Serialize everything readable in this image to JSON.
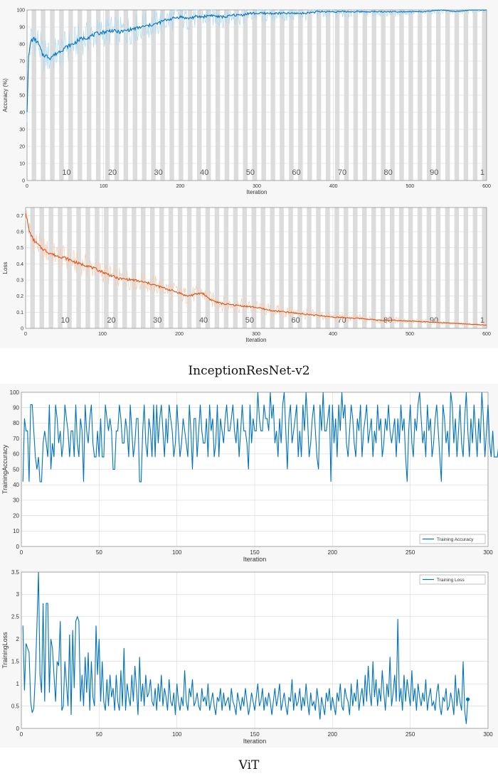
{
  "captions": {
    "top": "InceptionResNet-v2",
    "bottom": "ViT"
  },
  "chart_data": [
    {
      "id": "inc-acc",
      "type": "line",
      "xlabel": "Iteration",
      "ylabel": "Accuracy (%)",
      "xlim": [
        0,
        600
      ],
      "ylim": [
        0,
        100
      ],
      "xticks": [
        0,
        100,
        200,
        300,
        400,
        500,
        600
      ],
      "yticks": [
        0,
        10,
        20,
        30,
        40,
        50,
        60,
        70,
        80,
        90,
        100
      ],
      "epoch_labels": [
        "10",
        "20",
        "30",
        "40",
        "50",
        "60",
        "70",
        "80",
        "90",
        "1"
      ],
      "epoch_label_x": [
        60,
        120,
        180,
        240,
        300,
        360,
        420,
        480,
        540,
        600
      ],
      "epoch_band_width": 6,
      "grid": true,
      "series": [
        {
          "color": "#0072bd",
          "raw_color": "#a9d8f2",
          "x": [
            0,
            2,
            5,
            10,
            15,
            20,
            30,
            40,
            50,
            60,
            70,
            80,
            90,
            100,
            110,
            120,
            130,
            140,
            150,
            160,
            170,
            180,
            190,
            200,
            210,
            220,
            230,
            240,
            250,
            260,
            270,
            280,
            290,
            300,
            320,
            340,
            360,
            380,
            400,
            420,
            440,
            460,
            480,
            500,
            520,
            540,
            560,
            580,
            600
          ],
          "y": [
            41,
            72,
            82,
            83,
            80,
            74,
            72,
            75,
            78,
            80,
            83,
            84,
            86,
            87,
            88,
            87,
            88,
            89,
            90,
            91,
            92,
            94,
            95,
            96,
            95,
            96,
            96,
            97,
            96,
            96,
            97,
            97,
            98,
            98,
            98,
            98,
            98,
            99,
            99,
            99,
            99,
            99,
            99,
            99,
            99,
            100,
            99,
            100,
            100
          ]
        }
      ]
    },
    {
      "id": "inc-loss",
      "type": "line",
      "xlabel": "Iteration",
      "ylabel": "Loss",
      "xlim": [
        0,
        600
      ],
      "ylim": [
        0,
        0.75
      ],
      "xticks": [
        0,
        100,
        200,
        300,
        400,
        500,
        600
      ],
      "yticks": [
        0,
        0.1,
        0.2,
        0.3,
        0.4,
        0.5,
        0.6,
        0.7
      ],
      "epoch_labels": [
        "10",
        "20",
        "30",
        "40",
        "50",
        "60",
        "70",
        "80",
        "90",
        "1"
      ],
      "epoch_label_x": [
        60,
        120,
        180,
        240,
        300,
        360,
        420,
        480,
        540,
        600
      ],
      "epoch_band_width": 6,
      "grid": true,
      "series": [
        {
          "color": "#d95319",
          "raw_color": "#f6cbb0",
          "x": [
            0,
            5,
            10,
            20,
            30,
            40,
            50,
            60,
            70,
            80,
            90,
            100,
            110,
            120,
            140,
            160,
            180,
            200,
            210,
            220,
            230,
            240,
            250,
            260,
            280,
            300,
            320,
            340,
            360,
            380,
            400,
            420,
            440,
            460,
            480,
            500,
            520,
            540,
            560,
            580,
            600
          ],
          "y": [
            0.72,
            0.6,
            0.55,
            0.5,
            0.47,
            0.45,
            0.44,
            0.42,
            0.4,
            0.39,
            0.37,
            0.35,
            0.33,
            0.31,
            0.3,
            0.28,
            0.25,
            0.22,
            0.2,
            0.21,
            0.22,
            0.18,
            0.16,
            0.15,
            0.14,
            0.13,
            0.11,
            0.1,
            0.09,
            0.08,
            0.07,
            0.065,
            0.06,
            0.05,
            0.05,
            0.045,
            0.04,
            0.035,
            0.03,
            0.025,
            0.02
          ]
        }
      ]
    },
    {
      "id": "vit-acc",
      "type": "line",
      "xlabel": "Iteration",
      "ylabel": "TrainingAccuracy",
      "xlim": [
        0,
        300
      ],
      "ylim": [
        0,
        100
      ],
      "xticks": [
        0,
        50,
        100,
        150,
        200,
        250,
        300
      ],
      "yticks": [
        0,
        10,
        20,
        30,
        40,
        50,
        60,
        70,
        80,
        90,
        100
      ],
      "grid": true,
      "legend_position": "bottom-right",
      "series": [
        {
          "name": "Training Accuracy",
          "color": "#0072bd",
          "x_start": 1,
          "values": [
            42,
            83,
            75,
            75,
            42,
            92,
            92,
            75,
            58,
            50,
            58,
            42,
            42,
            67,
            75,
            67,
            58,
            92,
            50,
            67,
            58,
            92,
            83,
            67,
            75,
            58,
            67,
            92,
            83,
            75,
            58,
            75,
            75,
            58,
            92,
            67,
            58,
            83,
            75,
            42,
            92,
            75,
            67,
            83,
            92,
            67,
            58,
            58,
            75,
            58,
            83,
            58,
            58,
            92,
            83,
            75,
            83,
            75,
            50,
            50,
            75,
            75,
            92,
            83,
            67,
            67,
            83,
            75,
            58,
            92,
            75,
            58,
            67,
            83,
            83,
            42,
            42,
            75,
            92,
            67,
            58,
            83,
            75,
            58,
            92,
            58,
            92,
            67,
            83,
            92,
            75,
            58,
            83,
            67,
            92,
            83,
            75,
            58,
            67,
            92,
            75,
            58,
            67,
            83,
            75,
            67,
            58,
            92,
            75,
            50,
            83,
            83,
            58,
            75,
            92,
            75,
            67,
            67,
            83,
            58,
            92,
            75,
            83,
            58,
            67,
            92,
            58,
            83,
            75,
            67,
            83,
            92,
            75,
            75,
            83,
            92,
            75,
            67,
            83,
            58,
            75,
            92,
            75,
            75,
            67,
            50,
            92,
            67,
            83,
            75,
            75,
            100,
            83,
            75,
            75,
            92,
            83,
            83,
            75,
            100,
            83,
            92,
            67,
            75,
            58,
            83,
            67,
            92,
            100,
            75,
            50,
            83,
            92,
            67,
            75,
            83,
            92,
            58,
            75,
            58,
            92,
            75,
            100,
            83,
            58,
            67,
            83,
            92,
            75,
            58,
            50,
            92,
            75,
            100,
            75,
            75,
            83,
            92,
            42,
            92,
            67,
            83,
            58,
            92,
            75,
            100,
            83,
            92,
            67,
            58,
            75,
            92,
            83,
            67,
            58,
            83,
            75,
            92,
            58,
            75,
            83,
            92,
            67,
            75,
            83,
            58,
            75,
            67,
            92,
            75,
            83,
            58,
            67,
            83,
            75,
            92,
            75,
            67,
            75,
            83,
            58,
            83,
            67,
            92,
            75,
            83,
            58,
            42,
            75,
            92,
            67,
            58,
            83,
            75,
            92,
            100,
            83,
            67,
            75,
            58,
            92,
            75,
            83,
            58,
            67,
            83,
            92,
            75,
            58,
            42,
            92,
            83,
            67,
            75,
            58,
            100,
            92,
            67,
            83,
            58,
            75,
            92,
            67,
            58,
            83,
            100,
            75,
            58,
            83,
            67,
            92,
            75,
            58,
            83,
            67,
            100,
            83,
            58,
            75,
            92,
            67,
            58,
            75,
            58,
            58,
            58,
            67,
            100,
            67
          ],
          "last_point_marker": true
        }
      ]
    },
    {
      "id": "vit-loss",
      "type": "line",
      "xlabel": "Iteration",
      "ylabel": "TrainingLoss",
      "xlim": [
        0,
        300
      ],
      "ylim": [
        0,
        3.5
      ],
      "xticks": [
        0,
        50,
        100,
        150,
        200,
        250,
        300
      ],
      "yticks": [
        0,
        0.5,
        1,
        1.5,
        2,
        2.5,
        3,
        3.5
      ],
      "grid": true,
      "legend_position": "top-right",
      "series": [
        {
          "name": "Training Loss",
          "color": "#0072bd",
          "x_start": 1,
          "values": [
            2.3,
            0.85,
            1.9,
            1.8,
            1.7,
            0.6,
            0.35,
            0.45,
            1.2,
            2.3,
            3.5,
            1.2,
            0.8,
            2.8,
            0.6,
            2.8,
            2.8,
            0.8,
            2.0,
            1.8,
            1.2,
            0.6,
            1.5,
            1.4,
            2.4,
            0.4,
            0.5,
            1.5,
            1.0,
            0.5,
            2.1,
            0.3,
            2.2,
            0.9,
            2.4,
            2.5,
            2.4,
            0.6,
            1.2,
            0.5,
            1.6,
            0.8,
            1.7,
            0.4,
            1.5,
            0.7,
            0.5,
            2.3,
            1.2,
            2.0,
            0.6,
            1.5,
            0.6,
            0.4,
            1.1,
            0.5,
            1.2,
            0.7,
            0.9,
            0.4,
            1.2,
            0.6,
            0.4,
            1.3,
            0.5,
            1.8,
            0.4,
            1.0,
            0.7,
            0.5,
            1.2,
            0.6,
            1.4,
            0.9,
            0.3,
            1.6,
            0.6,
            1.0,
            0.5,
            1.2,
            0.7,
            0.8,
            1.1,
            0.6,
            0.5,
            0.9,
            0.4,
            1.0,
            0.6,
            1.2,
            0.5,
            0.9,
            0.7,
            0.4,
            1.1,
            0.6,
            0.5,
            0.8,
            0.3,
            1.0,
            0.6,
            0.4,
            0.7,
            0.5,
            1.3,
            0.6,
            0.4,
            0.9,
            0.7,
            1.1,
            0.5,
            0.6,
            0.8,
            0.5,
            0.4,
            0.9,
            0.6,
            0.7,
            0.5,
            1.0,
            0.4,
            0.6,
            0.8,
            0.5,
            0.3,
            0.7,
            0.6,
            0.9,
            0.4,
            0.8,
            0.5,
            0.6,
            0.7,
            0.4,
            0.9,
            0.6,
            0.5,
            0.3,
            0.8,
            0.6,
            0.4,
            0.7,
            0.5,
            0.9,
            0.6,
            0.3,
            0.5,
            0.8,
            0.6,
            0.4,
            0.7,
            1.0,
            0.5,
            0.6,
            0.9,
            0.4,
            0.7,
            0.5,
            0.8,
            0.6,
            0.3,
            0.6,
            0.9,
            0.5,
            0.7,
            1.0,
            0.4,
            0.6,
            0.8,
            0.5,
            0.3,
            0.7,
            0.6,
            1.1,
            0.4,
            0.8,
            0.5,
            0.6,
            0.9,
            0.4,
            0.7,
            0.5,
            1.0,
            0.6,
            0.3,
            0.8,
            0.5,
            0.6,
            0.4,
            0.9,
            0.6,
            0.2,
            0.7,
            0.5,
            0.3,
            0.8,
            0.6,
            0.9,
            0.4,
            0.7,
            0.5,
            0.3,
            0.8,
            0.6,
            1.0,
            0.5,
            0.4,
            0.9,
            0.7,
            0.6,
            0.3,
            1.0,
            0.5,
            0.8,
            0.6,
            1.1,
            0.4,
            0.7,
            0.9,
            0.5,
            1.2,
            0.6,
            1.4,
            0.8,
            0.5,
            1.5,
            0.7,
            1.1,
            0.5,
            0.9,
            0.6,
            1.3,
            0.8,
            0.4,
            1.0,
            0.7,
            1.6,
            0.5,
            0.8,
            1.2,
            0.6,
            2.45,
            0.6,
            0.9,
            0.4,
            1.2,
            0.6,
            1.1,
            0.8,
            0.5,
            1.3,
            0.6,
            0.9,
            0.4,
            1.0,
            0.7,
            0.5,
            0.8,
            0.6,
            1.1,
            0.4,
            0.7,
            0.9,
            0.5,
            0.6,
            0.4,
            0.8,
            1.0,
            0.5,
            0.3,
            0.7,
            0.6,
            0.9,
            0.4,
            0.5,
            0.8,
            0.6,
            0.3,
            1.2,
            0.5,
            0.9,
            0.6,
            0.4,
            1.5,
            0.4,
            0.1,
            0.65
          ],
          "last_point_marker": true
        }
      ]
    }
  ]
}
